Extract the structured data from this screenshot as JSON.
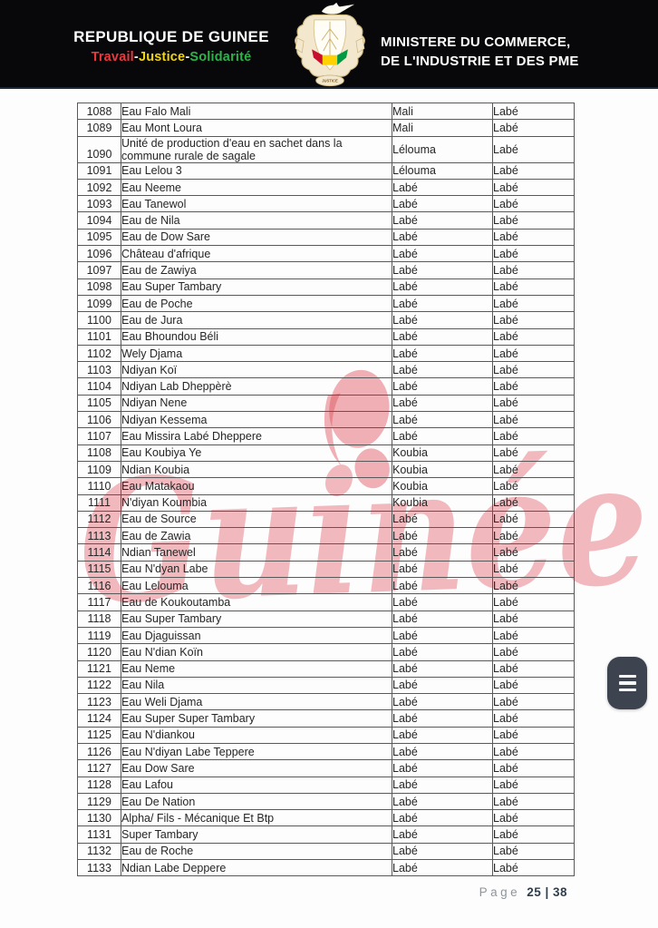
{
  "header": {
    "republic": "REPUBLIQUE DE GUINEE",
    "motto_travail": "Travail",
    "motto_sep1": "-",
    "motto_justice": "Justice",
    "motto_sep2": "-",
    "motto_solidarite": "Solidarité",
    "ministry_line1": "MINISTERE DU COMMERCE,",
    "ministry_line2": "DE L'INDUSTRIE ET DES PME",
    "emblem_motto": "JUSTICE",
    "colors": {
      "band_background": "#08080a",
      "motto_red": "#e8393d",
      "motto_yellow": "#f0d411",
      "motto_green": "#2cb34a",
      "flag_red": "#c8102e",
      "flag_yellow": "#ffd100",
      "flag_green": "#009a44"
    }
  },
  "watermark": {
    "text": "Guinée",
    "color": "#de525e"
  },
  "table": {
    "rows": [
      {
        "num": "1088",
        "name": "Eau Falo Mali",
        "prefecture": "Mali",
        "region": "Labé"
      },
      {
        "num": "1089",
        "name": "Eau Mont Loura",
        "prefecture": "Mali",
        "region": "Labé"
      },
      {
        "num": "1090",
        "name": "Unité de production d'eau en sachet dans la commune rurale de sagale",
        "prefecture": "Lélouma",
        "region": "Labé"
      },
      {
        "num": "1091",
        "name": "Eau Lelou 3",
        "prefecture": "Lélouma",
        "region": "Labé"
      },
      {
        "num": "1092",
        "name": "Eau Neeme",
        "prefecture": "Labé",
        "region": "Labé"
      },
      {
        "num": "1093",
        "name": "Eau Tanewol",
        "prefecture": "Labé",
        "region": "Labé"
      },
      {
        "num": "1094",
        "name": "Eau de Nila",
        "prefecture": "Labé",
        "region": "Labé"
      },
      {
        "num": "1095",
        "name": "Eau de Dow Sare",
        "prefecture": "Labé",
        "region": "Labé"
      },
      {
        "num": "1096",
        "name": "Château d'afrique",
        "prefecture": "Labé",
        "region": "Labé"
      },
      {
        "num": "1097",
        "name": "Eau de Zawiya",
        "prefecture": "Labé",
        "region": "Labé"
      },
      {
        "num": "1098",
        "name": "Eau Super Tambary",
        "prefecture": "Labé",
        "region": "Labé"
      },
      {
        "num": "1099",
        "name": "Eau de Poche",
        "prefecture": "Labé",
        "region": "Labé"
      },
      {
        "num": "1100",
        "name": "Eau de Jura",
        "prefecture": "Labé",
        "region": "Labé"
      },
      {
        "num": "1101",
        "name": "Eau Bhoundou Béli",
        "prefecture": "Labé",
        "region": "Labé"
      },
      {
        "num": "1102",
        "name": "Wely Djama",
        "prefecture": "Labé",
        "region": "Labé"
      },
      {
        "num": "1103",
        "name": "Ndiyan Koï",
        "prefecture": "Labé",
        "region": "Labé"
      },
      {
        "num": "1104",
        "name": "Ndiyan Lab Dheppèrè",
        "prefecture": "Labé",
        "region": "Labé"
      },
      {
        "num": "1105",
        "name": "Ndiyan Nene",
        "prefecture": "Labé",
        "region": "Labé"
      },
      {
        "num": "1106",
        "name": "Ndiyan Kessema",
        "prefecture": "Labé",
        "region": "Labé"
      },
      {
        "num": "1107",
        "name": "Eau Missira Labé Dheppere",
        "prefecture": "Labé",
        "region": "Labé"
      },
      {
        "num": "1108",
        "name": "Eau Koubiya Ye",
        "prefecture": "Koubia",
        "region": "Labé"
      },
      {
        "num": "1109",
        "name": "Ndian Koubia",
        "prefecture": "Koubia",
        "region": "Labé"
      },
      {
        "num": "1110",
        "name": "Eau Matakaou",
        "prefecture": "Koubia",
        "region": "Labé"
      },
      {
        "num": "1111",
        "name": "N'diyan Koumbia",
        "prefecture": "Koubia",
        "region": "Labé"
      },
      {
        "num": "1112",
        "name": "Eau de Source",
        "prefecture": "Labé",
        "region": "Labé"
      },
      {
        "num": "1113",
        "name": "Eau de Zawia",
        "prefecture": "Labé",
        "region": "Labé"
      },
      {
        "num": "1114",
        "name": "Ndian Tanewel",
        "prefecture": "Labé",
        "region": "Labé"
      },
      {
        "num": "1115",
        "name": "Eau N'dyan Labe",
        "prefecture": "Labé",
        "region": "Labé"
      },
      {
        "num": "1116",
        "name": "Eau Lelouma",
        "prefecture": "Labé",
        "region": "Labé"
      },
      {
        "num": "1117",
        "name": "Eau de Koukoutamba",
        "prefecture": "Labé",
        "region": "Labé"
      },
      {
        "num": "1118",
        "name": "Eau Super Tambary",
        "prefecture": "Labé",
        "region": "Labé"
      },
      {
        "num": "1119",
        "name": "Eau Djaguissan",
        "prefecture": "Labé",
        "region": "Labé"
      },
      {
        "num": "1120",
        "name": "Eau N'dian Koïn",
        "prefecture": "Labé",
        "region": "Labé"
      },
      {
        "num": "1121",
        "name": "Eau Neme",
        "prefecture": "Labé",
        "region": "Labé"
      },
      {
        "num": "1122",
        "name": "Eau Nila",
        "prefecture": "Labé",
        "region": "Labé"
      },
      {
        "num": "1123",
        "name": "Eau Weli Djama",
        "prefecture": "Labé",
        "region": "Labé"
      },
      {
        "num": "1124",
        "name": "Eau Super Super Tambary",
        "prefecture": "Labé",
        "region": "Labé"
      },
      {
        "num": "1125",
        "name": "Eau N'diankou",
        "prefecture": "Labé",
        "region": "Labé"
      },
      {
        "num": "1126",
        "name": "Eau N'diyan Labe Teppere",
        "prefecture": "Labé",
        "region": "Labé"
      },
      {
        "num": "1127",
        "name": "Eau Dow Sare",
        "prefecture": "Labé",
        "region": "Labé"
      },
      {
        "num": "1128",
        "name": "Eau Lafou",
        "prefecture": "Labé",
        "region": "Labé"
      },
      {
        "num": "1129",
        "name": "Eau De Nation",
        "prefecture": "Labé",
        "region": "Labé"
      },
      {
        "num": "1130",
        "name": "Alpha/ Fils - Mécanique Et Btp",
        "prefecture": "Labé",
        "region": "Labé"
      },
      {
        "num": "1131",
        "name": "Super Tambary",
        "prefecture": "Labé",
        "region": "Labé"
      },
      {
        "num": "1132",
        "name": "Eau de Roche",
        "prefecture": "Labé",
        "region": "Labé"
      },
      {
        "num": "1133",
        "name": "Ndian Labe Deppere",
        "prefecture": "Labé",
        "region": "Labé"
      }
    ]
  },
  "footer": {
    "page_label": "Page",
    "page_value": "25 | 38"
  },
  "viewer": {
    "menu_button_icon": "hamburger-menu-icon",
    "menu_button_color": "#3d434f"
  }
}
